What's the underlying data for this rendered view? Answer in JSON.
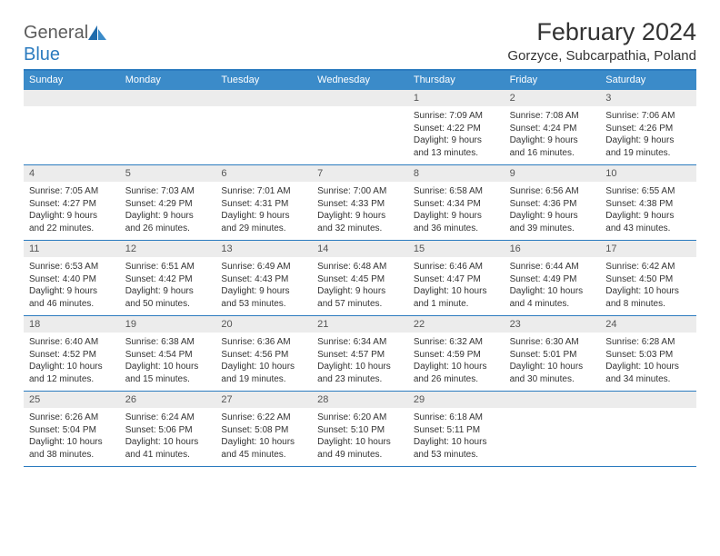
{
  "logo": {
    "general": "General",
    "blue": "Blue"
  },
  "title": "February 2024",
  "location": "Gorzyce, Subcarpathia, Poland",
  "colors": {
    "header_bg": "#3b8bc9",
    "rule": "#2b7bbf",
    "daynum_bg": "#ececec",
    "text": "#333333"
  },
  "weekdays": [
    "Sunday",
    "Monday",
    "Tuesday",
    "Wednesday",
    "Thursday",
    "Friday",
    "Saturday"
  ],
  "weeks": [
    [
      null,
      null,
      null,
      null,
      {
        "n": "1",
        "sr": "7:09 AM",
        "ss": "4:22 PM",
        "dl": "9 hours and 13 minutes."
      },
      {
        "n": "2",
        "sr": "7:08 AM",
        "ss": "4:24 PM",
        "dl": "9 hours and 16 minutes."
      },
      {
        "n": "3",
        "sr": "7:06 AM",
        "ss": "4:26 PM",
        "dl": "9 hours and 19 minutes."
      }
    ],
    [
      {
        "n": "4",
        "sr": "7:05 AM",
        "ss": "4:27 PM",
        "dl": "9 hours and 22 minutes."
      },
      {
        "n": "5",
        "sr": "7:03 AM",
        "ss": "4:29 PM",
        "dl": "9 hours and 26 minutes."
      },
      {
        "n": "6",
        "sr": "7:01 AM",
        "ss": "4:31 PM",
        "dl": "9 hours and 29 minutes."
      },
      {
        "n": "7",
        "sr": "7:00 AM",
        "ss": "4:33 PM",
        "dl": "9 hours and 32 minutes."
      },
      {
        "n": "8",
        "sr": "6:58 AM",
        "ss": "4:34 PM",
        "dl": "9 hours and 36 minutes."
      },
      {
        "n": "9",
        "sr": "6:56 AM",
        "ss": "4:36 PM",
        "dl": "9 hours and 39 minutes."
      },
      {
        "n": "10",
        "sr": "6:55 AM",
        "ss": "4:38 PM",
        "dl": "9 hours and 43 minutes."
      }
    ],
    [
      {
        "n": "11",
        "sr": "6:53 AM",
        "ss": "4:40 PM",
        "dl": "9 hours and 46 minutes."
      },
      {
        "n": "12",
        "sr": "6:51 AM",
        "ss": "4:42 PM",
        "dl": "9 hours and 50 minutes."
      },
      {
        "n": "13",
        "sr": "6:49 AM",
        "ss": "4:43 PM",
        "dl": "9 hours and 53 minutes."
      },
      {
        "n": "14",
        "sr": "6:48 AM",
        "ss": "4:45 PM",
        "dl": "9 hours and 57 minutes."
      },
      {
        "n": "15",
        "sr": "6:46 AM",
        "ss": "4:47 PM",
        "dl": "10 hours and 1 minute."
      },
      {
        "n": "16",
        "sr": "6:44 AM",
        "ss": "4:49 PM",
        "dl": "10 hours and 4 minutes."
      },
      {
        "n": "17",
        "sr": "6:42 AM",
        "ss": "4:50 PM",
        "dl": "10 hours and 8 minutes."
      }
    ],
    [
      {
        "n": "18",
        "sr": "6:40 AM",
        "ss": "4:52 PM",
        "dl": "10 hours and 12 minutes."
      },
      {
        "n": "19",
        "sr": "6:38 AM",
        "ss": "4:54 PM",
        "dl": "10 hours and 15 minutes."
      },
      {
        "n": "20",
        "sr": "6:36 AM",
        "ss": "4:56 PM",
        "dl": "10 hours and 19 minutes."
      },
      {
        "n": "21",
        "sr": "6:34 AM",
        "ss": "4:57 PM",
        "dl": "10 hours and 23 minutes."
      },
      {
        "n": "22",
        "sr": "6:32 AM",
        "ss": "4:59 PM",
        "dl": "10 hours and 26 minutes."
      },
      {
        "n": "23",
        "sr": "6:30 AM",
        "ss": "5:01 PM",
        "dl": "10 hours and 30 minutes."
      },
      {
        "n": "24",
        "sr": "6:28 AM",
        "ss": "5:03 PM",
        "dl": "10 hours and 34 minutes."
      }
    ],
    [
      {
        "n": "25",
        "sr": "6:26 AM",
        "ss": "5:04 PM",
        "dl": "10 hours and 38 minutes."
      },
      {
        "n": "26",
        "sr": "6:24 AM",
        "ss": "5:06 PM",
        "dl": "10 hours and 41 minutes."
      },
      {
        "n": "27",
        "sr": "6:22 AM",
        "ss": "5:08 PM",
        "dl": "10 hours and 45 minutes."
      },
      {
        "n": "28",
        "sr": "6:20 AM",
        "ss": "5:10 PM",
        "dl": "10 hours and 49 minutes."
      },
      {
        "n": "29",
        "sr": "6:18 AM",
        "ss": "5:11 PM",
        "dl": "10 hours and 53 minutes."
      },
      null,
      null
    ]
  ],
  "labels": {
    "sunrise": "Sunrise: ",
    "sunset": "Sunset: ",
    "daylight": "Daylight: "
  }
}
